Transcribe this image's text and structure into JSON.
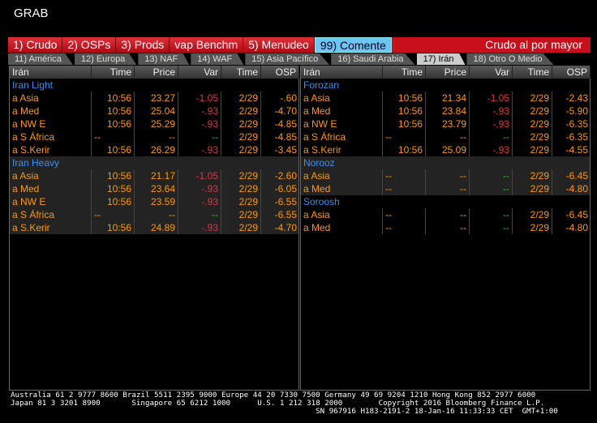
{
  "title": "GRAB",
  "menu": {
    "items": [
      "1) Crudo",
      "2) OSPs",
      "3) Prods",
      "vap Benchm",
      "5) Menudeo",
      "99) Comente"
    ],
    "active": 5,
    "right_label": "Crudo al por mayor"
  },
  "tabs": {
    "items": [
      "11) América",
      "12) Europa",
      "13) NAF",
      "14) WAF",
      "15) Asia Pacífico",
      "16) Saudi Arabia",
      "17) Irán",
      "18) Otro O Medio"
    ],
    "active": 6
  },
  "colors": {
    "menu": "#c8101c",
    "active_menu": "#6cc6f2",
    "group": "#3a8ef0",
    "value": "#ff9900",
    "negative": "#e83040",
    "unchanged": "#22cc22"
  },
  "panels": [
    {
      "headers": [
        "Irán",
        "Time",
        "Price",
        "Var",
        "Time",
        "OSP"
      ],
      "groups": [
        {
          "name": "Iran Light",
          "shaded": false,
          "rows": [
            [
              "a Asia",
              "10:56",
              "23.27",
              "-1.05",
              "2/29",
              "-.60"
            ],
            [
              "a Med",
              "10:56",
              "25.04",
              "-.93",
              "2/29",
              "-4.70"
            ],
            [
              "a NW E",
              "10:56",
              "25.29",
              "-.93",
              "2/29",
              "-4.85"
            ],
            [
              "a S África",
              "--",
              "--",
              "--",
              "2/29",
              "-4.85"
            ],
            [
              "a S.Kerir",
              "10:56",
              "26.29",
              "-.93",
              "2/29",
              "-3.45"
            ]
          ]
        },
        {
          "name": "Iran Heavy",
          "shaded": true,
          "rows": [
            [
              "a Asia",
              "10:56",
              "21.17",
              "-1.05",
              "2/29",
              "-2.60"
            ],
            [
              "a Med",
              "10:56",
              "23.64",
              "-.93",
              "2/29",
              "-6.05"
            ],
            [
              "a NW E",
              "10:56",
              "23.59",
              "-.93",
              "2/29",
              "-6.55"
            ],
            [
              "a S África",
              "--",
              "--",
              "--",
              "2/29",
              "-6.55"
            ],
            [
              "a S.Kerir",
              "10:56",
              "24.89",
              "-.93",
              "2/29",
              "-4.70"
            ]
          ]
        }
      ]
    },
    {
      "headers": [
        "Irán",
        "Time",
        "Price",
        "Var",
        "Time",
        "OSP"
      ],
      "groups": [
        {
          "name": "Forozan",
          "shaded": false,
          "rows": [
            [
              "a Asia",
              "10:56",
              "21.34",
              "-1.05",
              "2/29",
              "-2.43"
            ],
            [
              "a Med",
              "10:56",
              "23.84",
              "-.93",
              "2/29",
              "-5.90"
            ],
            [
              "a NW E",
              "10:56",
              "23.79",
              "-.93",
              "2/29",
              "-6.35"
            ],
            [
              "a S África",
              "--",
              "--",
              "--",
              "2/29",
              "-6.35"
            ],
            [
              "a S.Kerir",
              "10:56",
              "25.09",
              "-.93",
              "2/29",
              "-4.55"
            ]
          ]
        },
        {
          "name": "Norooz",
          "shaded": true,
          "rows": [
            [
              "a Asia",
              "--",
              "--",
              "--",
              "2/29",
              "-6.45"
            ],
            [
              "a Med",
              "--",
              "--",
              "--",
              "2/29",
              "-4.80"
            ]
          ]
        },
        {
          "name": "Soroosh",
          "shaded": false,
          "rows": [
            [
              "a Asia",
              "--",
              "--",
              "--",
              "2/29",
              "-6.45"
            ],
            [
              "a Med",
              "--",
              "--",
              "--",
              "2/29",
              "-4.80"
            ]
          ]
        }
      ]
    }
  ],
  "footer": {
    "line1": "Australia 61 2 9777 8600 Brazil 5511 2395 9000 Europe 44 20 7330 7500 Germany 49 69 9204 1210 Hong Kong 852 2977 6000",
    "line2": "Japan 81 3 3201 8900       Singapore 65 6212 1000      U.S. 1 212 318 2000        Copyright 2016 Bloomberg Finance L.P.",
    "line3": "                                                                    SN 967916 H183-2191-2 18-Jan-16 11:33:33 CET  GMT+1:00"
  }
}
